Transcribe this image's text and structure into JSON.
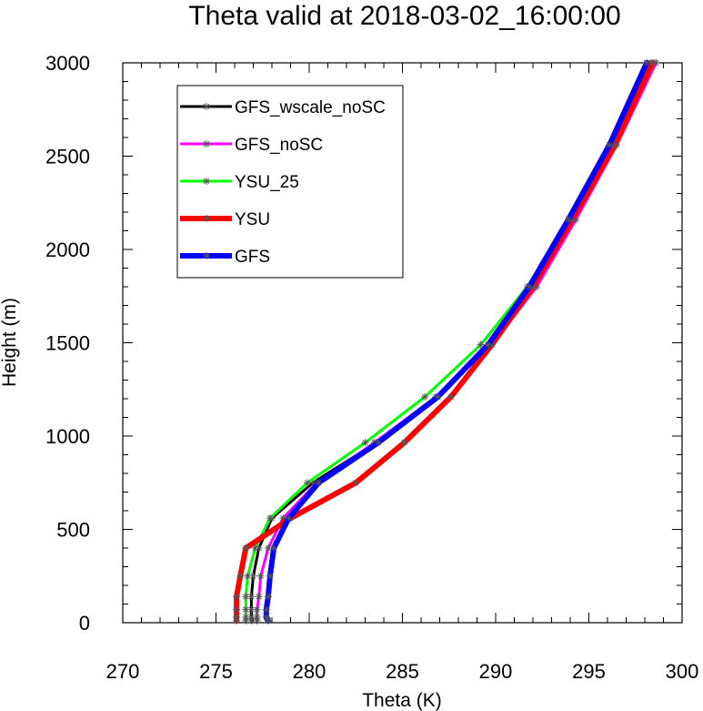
{
  "chart_data": {
    "type": "line",
    "title": "Theta valid at 2018-03-02_16:00:00",
    "xlabel": "Theta (K)",
    "ylabel": "Height (m)",
    "xlim": [
      270,
      300
    ],
    "ylim": [
      0,
      3000
    ],
    "xticks": [
      "270",
      "275",
      "280",
      "285",
      "290",
      "295",
      "300"
    ],
    "yticks": [
      "0",
      "500",
      "1000",
      "1500",
      "2000",
      "2500",
      "3000"
    ],
    "grid": false,
    "legend_position": "top-left",
    "series": [
      {
        "name": "GFS_wscale_noSC",
        "color": "#000000",
        "marker": "asterisk",
        "points": [
          [
            276.9,
            10
          ],
          [
            276.9,
            30
          ],
          [
            276.9,
            70
          ],
          [
            276.9,
            140
          ],
          [
            277.0,
            250
          ],
          [
            277.3,
            400
          ],
          [
            278.0,
            560
          ],
          [
            280.2,
            750
          ],
          [
            283.6,
            965
          ],
          [
            286.8,
            1210
          ],
          [
            289.6,
            1490
          ],
          [
            291.9,
            1800
          ],
          [
            294.0,
            2160
          ],
          [
            296.3,
            2560
          ],
          [
            298.3,
            3000
          ]
        ]
      },
      {
        "name": "GFS_noSC",
        "color": "#ff00ff",
        "marker": "asterisk",
        "points": [
          [
            277.2,
            10
          ],
          [
            277.2,
            30
          ],
          [
            277.2,
            70
          ],
          [
            277.3,
            140
          ],
          [
            277.4,
            250
          ],
          [
            277.8,
            400
          ],
          [
            278.6,
            560
          ],
          [
            280.4,
            750
          ],
          [
            283.5,
            965
          ],
          [
            286.8,
            1210
          ],
          [
            289.8,
            1490
          ],
          [
            292.2,
            1800
          ],
          [
            294.3,
            2160
          ],
          [
            296.5,
            2560
          ],
          [
            298.6,
            3000
          ]
        ]
      },
      {
        "name": "YSU_25",
        "color": "#00ff00",
        "marker": "asterisk",
        "points": [
          [
            276.6,
            10
          ],
          [
            276.6,
            30
          ],
          [
            276.6,
            70
          ],
          [
            276.6,
            140
          ],
          [
            276.7,
            250
          ],
          [
            277.1,
            400
          ],
          [
            277.9,
            560
          ],
          [
            279.9,
            750
          ],
          [
            283.0,
            965
          ],
          [
            286.2,
            1210
          ],
          [
            289.2,
            1490
          ],
          [
            291.7,
            1800
          ],
          [
            294.0,
            2160
          ],
          [
            296.3,
            2560
          ],
          [
            298.5,
            3000
          ]
        ]
      },
      {
        "name": "YSU",
        "color": "#ff0000",
        "marker": "asterisk",
        "points": [
          [
            276.1,
            10
          ],
          [
            276.1,
            30
          ],
          [
            276.1,
            70
          ],
          [
            276.1,
            140
          ],
          [
            276.3,
            250
          ],
          [
            276.6,
            400
          ],
          [
            279.0,
            560
          ],
          [
            282.5,
            750
          ],
          [
            285.1,
            965
          ],
          [
            287.6,
            1210
          ],
          [
            289.8,
            1490
          ],
          [
            292.0,
            1800
          ],
          [
            294.1,
            2160
          ],
          [
            296.4,
            2560
          ],
          [
            298.4,
            3000
          ]
        ]
      },
      {
        "name": "GFS",
        "color": "#0000ff",
        "marker": "asterisk",
        "points": [
          [
            277.8,
            10
          ],
          [
            277.7,
            30
          ],
          [
            277.7,
            70
          ],
          [
            277.8,
            140
          ],
          [
            277.9,
            250
          ],
          [
            278.1,
            400
          ],
          [
            278.9,
            560
          ],
          [
            280.5,
            750
          ],
          [
            283.7,
            965
          ],
          [
            286.9,
            1210
          ],
          [
            289.6,
            1490
          ],
          [
            291.8,
            1800
          ],
          [
            293.9,
            2160
          ],
          [
            296.1,
            2560
          ],
          [
            298.1,
            3000
          ]
        ]
      }
    ]
  }
}
